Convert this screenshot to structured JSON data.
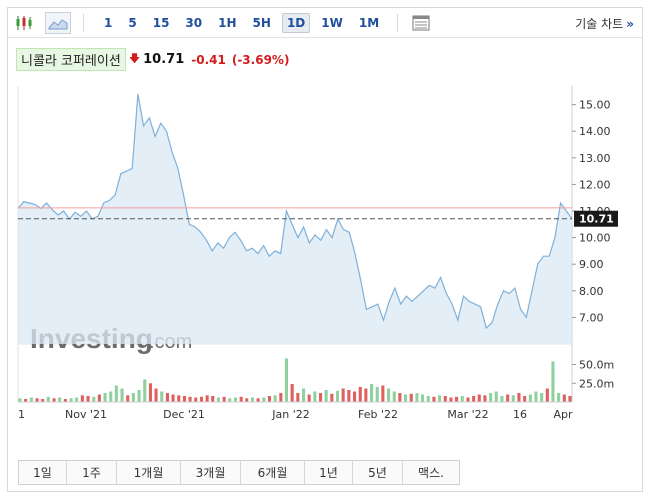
{
  "toolbar": {
    "icons": [
      "candlestick-icon",
      "area-chart-icon",
      "chart-settings-icon"
    ],
    "timeframes": [
      "1",
      "5",
      "15",
      "30",
      "1H",
      "5H",
      "1D",
      "1W",
      "1M"
    ],
    "active_timeframe": "1D",
    "technical_chart_label": "기술 차트",
    "technical_chart_chevron": "»"
  },
  "quote": {
    "name": "니콜라 코퍼레이션",
    "price": "10.71",
    "change": "-0.41",
    "change_pct": "(-3.69%)",
    "direction": "down"
  },
  "watermark": {
    "brand": "Investing",
    "suffix": ".com"
  },
  "chart_data": {
    "type": "area",
    "x_labels": [
      "1",
      "Nov '21",
      "Dec '21",
      "Jan '22",
      "Feb '22",
      "Mar '22",
      "16",
      "Apr"
    ],
    "ylim": [
      6.0,
      15.7
    ],
    "y_ticks": [
      "7.00",
      "8.00",
      "9.00",
      "10.00",
      "11.00",
      "12.00",
      "13.00",
      "14.00",
      "15.00"
    ],
    "current_value": "10.71",
    "previous_close": 11.12,
    "series": [
      {
        "values": [
          11.1,
          11.35,
          11.3,
          11.25,
          11.1,
          11.3,
          11.05,
          10.85,
          11.0,
          10.7,
          10.95,
          10.8,
          11.0,
          10.7,
          10.8,
          11.3,
          11.4,
          11.6,
          12.4,
          12.5,
          12.6,
          15.4,
          14.2,
          14.5,
          13.8,
          14.3,
          14.0,
          13.2,
          12.6,
          11.6,
          10.5,
          10.4,
          10.2,
          9.9,
          9.5,
          9.8,
          9.6,
          10.0,
          10.2,
          9.9,
          9.5,
          9.6,
          9.4,
          9.7,
          9.3,
          9.5,
          9.4,
          11.0,
          10.5,
          10.0,
          10.4,
          9.8,
          10.1,
          9.9,
          10.3,
          10.0,
          10.7,
          10.3,
          10.2,
          9.4,
          8.4,
          7.3,
          7.4,
          7.5,
          6.9,
          7.6,
          8.1,
          7.5,
          7.8,
          7.6,
          7.8,
          8.0,
          8.2,
          8.1,
          8.5,
          7.9,
          7.5,
          6.9,
          7.8,
          7.6,
          7.5,
          7.4,
          6.6,
          6.8,
          7.5,
          8.0,
          7.9,
          8.1,
          7.3,
          7.0,
          8.0,
          9.0,
          9.3,
          9.3,
          10.0,
          11.3,
          11.0,
          10.71
        ]
      }
    ],
    "volume": {
      "unit": "m",
      "ticks": [
        "25.0m",
        "50.0m"
      ],
      "ylim": [
        0,
        64
      ],
      "values": [
        5,
        4,
        6,
        5,
        4,
        7,
        5,
        6,
        4,
        5,
        6,
        9,
        8,
        7,
        10,
        12,
        14,
        22,
        18,
        9,
        12,
        16,
        30,
        25,
        18,
        14,
        12,
        10,
        9,
        8,
        7,
        6,
        7,
        9,
        8,
        6,
        7,
        5,
        6,
        7,
        5,
        6,
        5,
        6,
        8,
        9,
        12,
        58,
        24,
        12,
        18,
        10,
        14,
        12,
        16,
        11,
        15,
        18,
        16,
        14,
        20,
        18,
        24,
        20,
        22,
        18,
        14,
        12,
        10,
        11,
        12,
        10,
        8,
        7,
        9,
        8,
        6,
        7,
        8,
        6,
        8,
        10,
        9,
        12,
        14,
        8,
        10,
        9,
        12,
        8,
        10,
        14,
        12,
        18,
        54,
        12,
        10,
        8
      ],
      "up_flags": [
        true,
        false,
        true,
        false,
        false,
        true,
        false,
        true,
        false,
        true,
        true,
        false,
        false,
        true,
        false,
        true,
        true,
        true,
        true,
        false,
        true,
        true,
        true,
        false,
        false,
        true,
        false,
        false,
        false,
        false,
        false,
        false,
        false,
        false,
        false,
        true,
        false,
        true,
        true,
        false,
        false,
        true,
        false,
        true,
        false,
        true,
        false,
        true,
        false,
        false,
        true,
        false,
        true,
        false,
        true,
        false,
        true,
        false,
        false,
        false,
        false,
        false,
        true,
        true,
        false,
        true,
        true,
        false,
        true,
        false,
        true,
        true,
        true,
        false,
        true,
        false,
        false,
        false,
        true,
        false,
        false,
        false,
        false,
        true,
        true,
        true,
        false,
        true,
        false,
        false,
        true,
        true,
        true,
        false,
        true,
        true,
        false,
        false
      ]
    }
  },
  "periods": [
    "1일",
    "1주",
    "1개월",
    "3개월",
    "6개월",
    "1년",
    "5년",
    "맥스."
  ],
  "colors": {
    "line": "#7fb0d9",
    "area": "#dbe8f4",
    "last_price_bg": "#1a1a1a",
    "prev_close_line": "#f0a0a0",
    "volume_up": "#8fd19e",
    "volume_down": "#e06060",
    "down": "#d21c1c"
  }
}
